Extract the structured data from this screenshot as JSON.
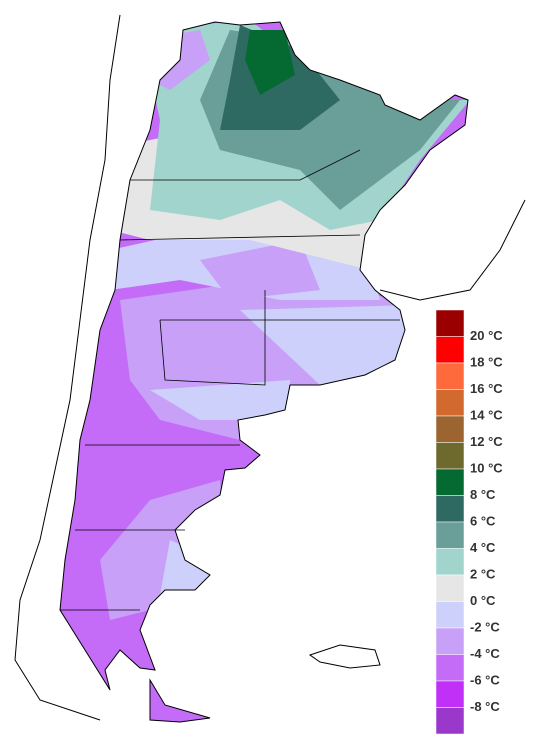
{
  "legend": {
    "colors": [
      "#9b0000",
      "#ff0000",
      "#ff6a3c",
      "#d2692e",
      "#9c6430",
      "#6e6a2e",
      "#056a32",
      "#2f6a62",
      "#6a9e98",
      "#a0d4cc",
      "#e6e6e6",
      "#cdd0fa",
      "#c8a0f8",
      "#c46cf8",
      "#c030f6",
      "#9a38cc"
    ],
    "labels": [
      "20 °C",
      "18 °C",
      "16 °C",
      "14 °C",
      "12 °C",
      "10 °C",
      "8 °C",
      "6 °C",
      "4 °C",
      "2 °C",
      "0 °C",
      "-2 °C",
      "-4 °C",
      "-6 °C",
      "-8 °C"
    ]
  }
}
